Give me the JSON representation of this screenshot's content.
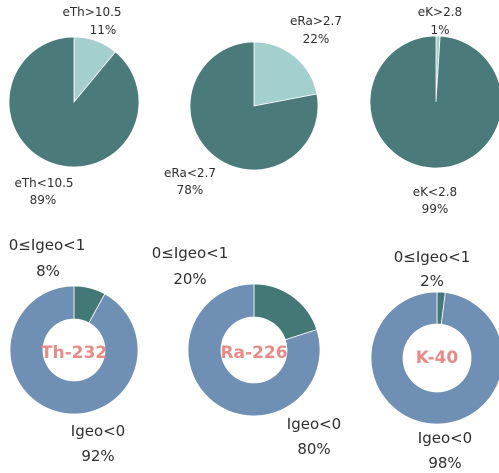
{
  "colors": {
    "pie_dark": "#4a7a7a",
    "pie_light": "#a4cfcf",
    "donut_major": "#6f8fb4",
    "donut_minor": "#437876",
    "center_text": "#e98a86",
    "text": "#2f2f2f"
  },
  "chart_data": [
    {
      "type": "pie",
      "element": "th",
      "slices": [
        {
          "label": "eTh>10.5",
          "pct_text": "11%",
          "value": 11
        },
        {
          "label": "eTh<10.5",
          "pct_text": "89%",
          "value": 89
        }
      ]
    },
    {
      "type": "pie",
      "element": "ra",
      "slices": [
        {
          "label": "eRa>2.7",
          "pct_text": "22%",
          "value": 22
        },
        {
          "label": "eRa<2.7",
          "pct_text": "78%",
          "value": 78
        }
      ]
    },
    {
      "type": "pie",
      "element": "k",
      "slices": [
        {
          "label": "eK>2.8",
          "pct_text": "1%",
          "value": 1
        },
        {
          "label": "eK<2.8",
          "pct_text": "99%",
          "value": 99
        }
      ]
    },
    {
      "type": "donut",
      "center_label": "Th-232",
      "slices": [
        {
          "label": "0≤Igeo<1",
          "pct_text": "8%",
          "value": 8
        },
        {
          "label": "Igeo<0",
          "pct_text": "92%",
          "value": 92
        }
      ]
    },
    {
      "type": "donut",
      "center_label": "Ra-226",
      "slices": [
        {
          "label": "0≤Igeo<1",
          "pct_text": "20%",
          "value": 20
        },
        {
          "label": "Igeo<0",
          "pct_text": "80%",
          "value": 80
        }
      ]
    },
    {
      "type": "donut",
      "center_label": "K-40",
      "slices": [
        {
          "label": "0≤Igeo<1",
          "pct_text": "2%",
          "value": 2
        },
        {
          "label": "Igeo<0",
          "pct_text": "98%",
          "value": 98
        }
      ]
    }
  ]
}
